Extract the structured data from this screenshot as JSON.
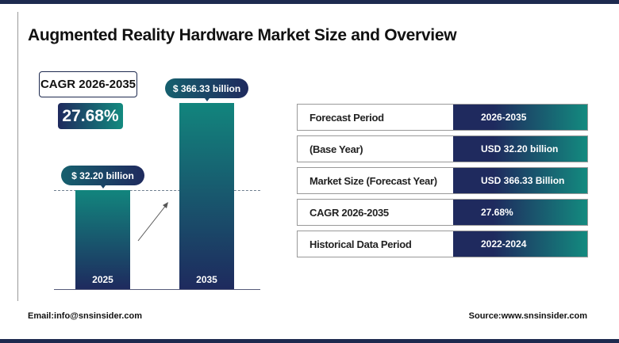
{
  "title": "Augmented Reality Hardware Market Size and Overview",
  "cagr": {
    "label": "CAGR 2026-2035",
    "value": "27.68%"
  },
  "chart_data": {
    "type": "bar",
    "categories": [
      "2025",
      "2035"
    ],
    "values": [
      32.2,
      366.33
    ],
    "data_labels": [
      "$ 32.20 billion",
      "$ 366.33 billion"
    ],
    "unit": "USD billion",
    "colors": [
      "#12857d",
      "#1e2a5e"
    ]
  },
  "table": [
    {
      "label": "Forecast Period",
      "value": "2026-2035"
    },
    {
      "label": "(Base Year)",
      "value": "USD 32.20 billion"
    },
    {
      "label": "Market Size (Forecast Year)",
      "value": "USD 366.33 Billion"
    },
    {
      "label": "CAGR 2026-2035",
      "value": "27.68%"
    },
    {
      "label": "Historical Data Period",
      "value": "2022-2024"
    }
  ],
  "footer": {
    "email": "Email:info@snsinsider.com",
    "source": "Source:www.snsinsider.com"
  }
}
